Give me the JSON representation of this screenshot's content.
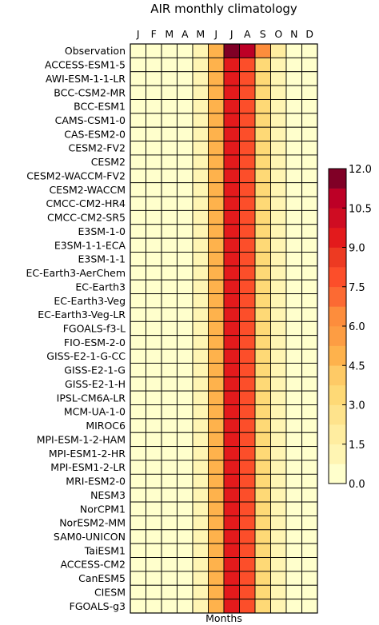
{
  "chart_data": {
    "type": "heatmap",
    "title": "AIR monthly climatology",
    "xlabel": "Months",
    "ylabel": "",
    "x_categories": [
      "J",
      "F",
      "M",
      "A",
      "M",
      "J",
      "J",
      "A",
      "S",
      "O",
      "N",
      "D"
    ],
    "y_categories": [
      "Observation",
      "ACCESS-ESM1-5",
      "AWI-ESM-1-1-LR",
      "BCC-CSM2-MR",
      "BCC-ESM1",
      "CAMS-CSM1-0",
      "CAS-ESM2-0",
      "CESM2-FV2",
      "CESM2",
      "CESM2-WACCM-FV2",
      "CESM2-WACCM",
      "CMCC-CM2-HR4",
      "CMCC-CM2-SR5",
      "E3SM-1-0",
      "E3SM-1-1-ECA",
      "E3SM-1-1",
      "EC-Earth3-AerChem",
      "EC-Earth3",
      "EC-Earth3-Veg",
      "EC-Earth3-Veg-LR",
      "FGOALS-f3-L",
      "FIO-ESM-2-0",
      "GISS-E2-1-G-CC",
      "GISS-E2-1-G",
      "GISS-E2-1-H",
      "IPSL-CM6A-LR",
      "MCM-UA-1-0",
      "MIROC6",
      "MPI-ESM-1-2-HAM",
      "MPI-ESM1-2-HR",
      "MPI-ESM1-2-LR",
      "MRI-ESM2-0",
      "NESM3",
      "NorCPM1",
      "NorESM2-MM",
      "SAM0-UNICON",
      "TaiESM1",
      "ACCESS-CM2",
      "CanESM5",
      "CIESM",
      "FGOALS-g3"
    ],
    "values": [
      [
        0.3,
        0.3,
        0.4,
        0.6,
        1.0,
        4.5,
        12.0,
        10.5,
        6.0,
        1.5,
        0.5,
        0.3
      ],
      [
        0.2,
        0.2,
        0.3,
        0.5,
        0.8,
        4.5,
        9.0,
        8.0,
        3.0,
        0.8,
        0.3,
        0.2
      ],
      [
        0.2,
        0.2,
        0.3,
        0.5,
        0.8,
        4.5,
        9.0,
        8.0,
        3.0,
        0.8,
        0.3,
        0.2
      ],
      [
        0.2,
        0.2,
        0.3,
        0.5,
        0.8,
        4.5,
        9.0,
        8.0,
        3.0,
        0.8,
        0.3,
        0.2
      ],
      [
        0.2,
        0.2,
        0.3,
        0.5,
        0.8,
        4.5,
        9.0,
        8.0,
        3.0,
        0.8,
        0.3,
        0.2
      ],
      [
        0.2,
        0.2,
        0.3,
        0.5,
        0.8,
        4.5,
        9.0,
        8.0,
        3.0,
        0.8,
        0.3,
        0.2
      ],
      [
        0.2,
        0.2,
        0.3,
        0.5,
        0.8,
        4.5,
        9.0,
        8.0,
        3.0,
        0.8,
        0.3,
        0.2
      ],
      [
        0.2,
        0.2,
        0.3,
        0.5,
        0.8,
        4.5,
        9.0,
        8.0,
        3.0,
        0.8,
        0.3,
        0.2
      ],
      [
        0.2,
        0.2,
        0.3,
        0.5,
        0.8,
        4.5,
        9.0,
        8.0,
        3.0,
        0.8,
        0.3,
        0.2
      ],
      [
        0.2,
        0.2,
        0.3,
        0.5,
        0.8,
        4.5,
        9.0,
        8.0,
        3.0,
        0.8,
        0.3,
        0.2
      ],
      [
        0.2,
        0.2,
        0.3,
        0.5,
        0.8,
        4.5,
        9.0,
        8.0,
        3.0,
        0.8,
        0.3,
        0.2
      ],
      [
        0.2,
        0.2,
        0.3,
        0.5,
        0.8,
        4.5,
        9.0,
        8.0,
        3.0,
        0.8,
        0.3,
        0.2
      ],
      [
        0.2,
        0.2,
        0.3,
        0.5,
        0.8,
        4.5,
        9.0,
        8.0,
        3.0,
        0.8,
        0.3,
        0.2
      ],
      [
        0.2,
        0.2,
        0.3,
        0.5,
        0.8,
        4.5,
        9.0,
        8.0,
        3.0,
        0.8,
        0.3,
        0.2
      ],
      [
        0.2,
        0.2,
        0.3,
        0.5,
        0.8,
        4.5,
        9.0,
        8.0,
        3.0,
        0.8,
        0.3,
        0.2
      ],
      [
        0.2,
        0.2,
        0.3,
        0.5,
        0.8,
        4.5,
        9.0,
        8.0,
        3.0,
        0.8,
        0.3,
        0.2
      ],
      [
        0.2,
        0.2,
        0.3,
        0.5,
        0.8,
        4.5,
        9.0,
        8.0,
        3.0,
        0.8,
        0.3,
        0.2
      ],
      [
        0.2,
        0.2,
        0.3,
        0.5,
        0.8,
        4.5,
        9.0,
        8.0,
        3.0,
        0.8,
        0.3,
        0.2
      ],
      [
        0.2,
        0.2,
        0.3,
        0.5,
        0.8,
        4.5,
        9.0,
        8.0,
        3.0,
        0.8,
        0.3,
        0.2
      ],
      [
        0.2,
        0.2,
        0.3,
        0.5,
        0.8,
        4.5,
        9.0,
        8.0,
        3.0,
        0.8,
        0.3,
        0.2
      ],
      [
        0.2,
        0.2,
        0.3,
        0.5,
        0.8,
        4.5,
        9.0,
        8.0,
        3.0,
        0.8,
        0.3,
        0.2
      ],
      [
        0.2,
        0.2,
        0.3,
        0.5,
        0.8,
        4.5,
        9.0,
        8.0,
        3.0,
        0.8,
        0.3,
        0.2
      ],
      [
        0.2,
        0.2,
        0.3,
        0.5,
        0.8,
        4.5,
        9.0,
        8.0,
        3.0,
        0.8,
        0.3,
        0.2
      ],
      [
        0.2,
        0.2,
        0.3,
        0.5,
        0.8,
        4.5,
        9.0,
        8.0,
        3.0,
        0.8,
        0.3,
        0.2
      ],
      [
        0.2,
        0.2,
        0.3,
        0.5,
        0.8,
        4.5,
        9.0,
        8.0,
        3.0,
        0.8,
        0.3,
        0.2
      ],
      [
        0.2,
        0.2,
        0.3,
        0.5,
        0.8,
        4.5,
        9.0,
        8.0,
        3.0,
        0.8,
        0.3,
        0.2
      ],
      [
        0.2,
        0.2,
        0.3,
        0.5,
        0.8,
        4.5,
        9.0,
        8.0,
        3.0,
        0.8,
        0.3,
        0.2
      ],
      [
        0.2,
        0.2,
        0.3,
        0.5,
        0.8,
        4.5,
        9.0,
        8.0,
        3.0,
        0.8,
        0.3,
        0.2
      ],
      [
        0.2,
        0.2,
        0.3,
        0.5,
        0.8,
        4.5,
        9.0,
        8.0,
        3.0,
        0.8,
        0.3,
        0.2
      ],
      [
        0.2,
        0.2,
        0.3,
        0.5,
        0.8,
        4.5,
        9.0,
        8.0,
        3.0,
        0.8,
        0.3,
        0.2
      ],
      [
        0.2,
        0.2,
        0.3,
        0.5,
        0.8,
        4.5,
        9.0,
        8.0,
        3.0,
        0.8,
        0.3,
        0.2
      ],
      [
        0.2,
        0.2,
        0.3,
        0.5,
        0.8,
        4.5,
        9.0,
        8.0,
        3.0,
        0.8,
        0.3,
        0.2
      ],
      [
        0.2,
        0.2,
        0.3,
        0.5,
        0.8,
        4.5,
        9.0,
        8.0,
        3.0,
        0.8,
        0.3,
        0.2
      ],
      [
        0.2,
        0.2,
        0.3,
        0.5,
        0.8,
        4.5,
        9.0,
        8.0,
        3.0,
        0.8,
        0.3,
        0.2
      ],
      [
        0.2,
        0.2,
        0.3,
        0.5,
        0.8,
        4.5,
        9.0,
        8.0,
        3.0,
        0.8,
        0.3,
        0.2
      ],
      [
        0.2,
        0.2,
        0.3,
        0.5,
        0.8,
        4.5,
        9.0,
        8.0,
        3.0,
        0.8,
        0.3,
        0.2
      ],
      [
        0.2,
        0.2,
        0.3,
        0.5,
        0.8,
        4.5,
        9.0,
        8.0,
        3.0,
        0.8,
        0.3,
        0.2
      ],
      [
        0.2,
        0.2,
        0.3,
        0.5,
        0.8,
        4.5,
        9.0,
        8.0,
        3.0,
        0.8,
        0.3,
        0.2
      ],
      [
        0.2,
        0.2,
        0.3,
        0.5,
        0.8,
        4.5,
        9.0,
        8.0,
        3.0,
        0.8,
        0.3,
        0.2
      ],
      [
        0.2,
        0.2,
        0.3,
        0.5,
        0.8,
        4.5,
        9.0,
        8.0,
        3.0,
        0.8,
        0.3,
        0.2
      ],
      [
        0.2,
        0.2,
        0.3,
        0.5,
        0.8,
        4.5,
        9.0,
        8.0,
        3.0,
        0.8,
        0.3,
        0.2
      ]
    ],
    "colorbar": {
      "min": 0.0,
      "max": 12.0,
      "ticks": [
        "12.0",
        "10.5",
        "9.0",
        "7.5",
        "6.0",
        "4.5",
        "3.0",
        "1.5",
        "0.0"
      ],
      "levels": 16,
      "colors": [
        "#ffffcc",
        "#fff5b3",
        "#ffeda0",
        "#fee38c",
        "#fed976",
        "#feca66",
        "#feb24c",
        "#fd9d43",
        "#fd8d3c",
        "#fc6a33",
        "#fc4e2a",
        "#ed3a22",
        "#e31a1c",
        "#cf0c22",
        "#bd0026",
        "#800026"
      ]
    },
    "grid": false
  }
}
